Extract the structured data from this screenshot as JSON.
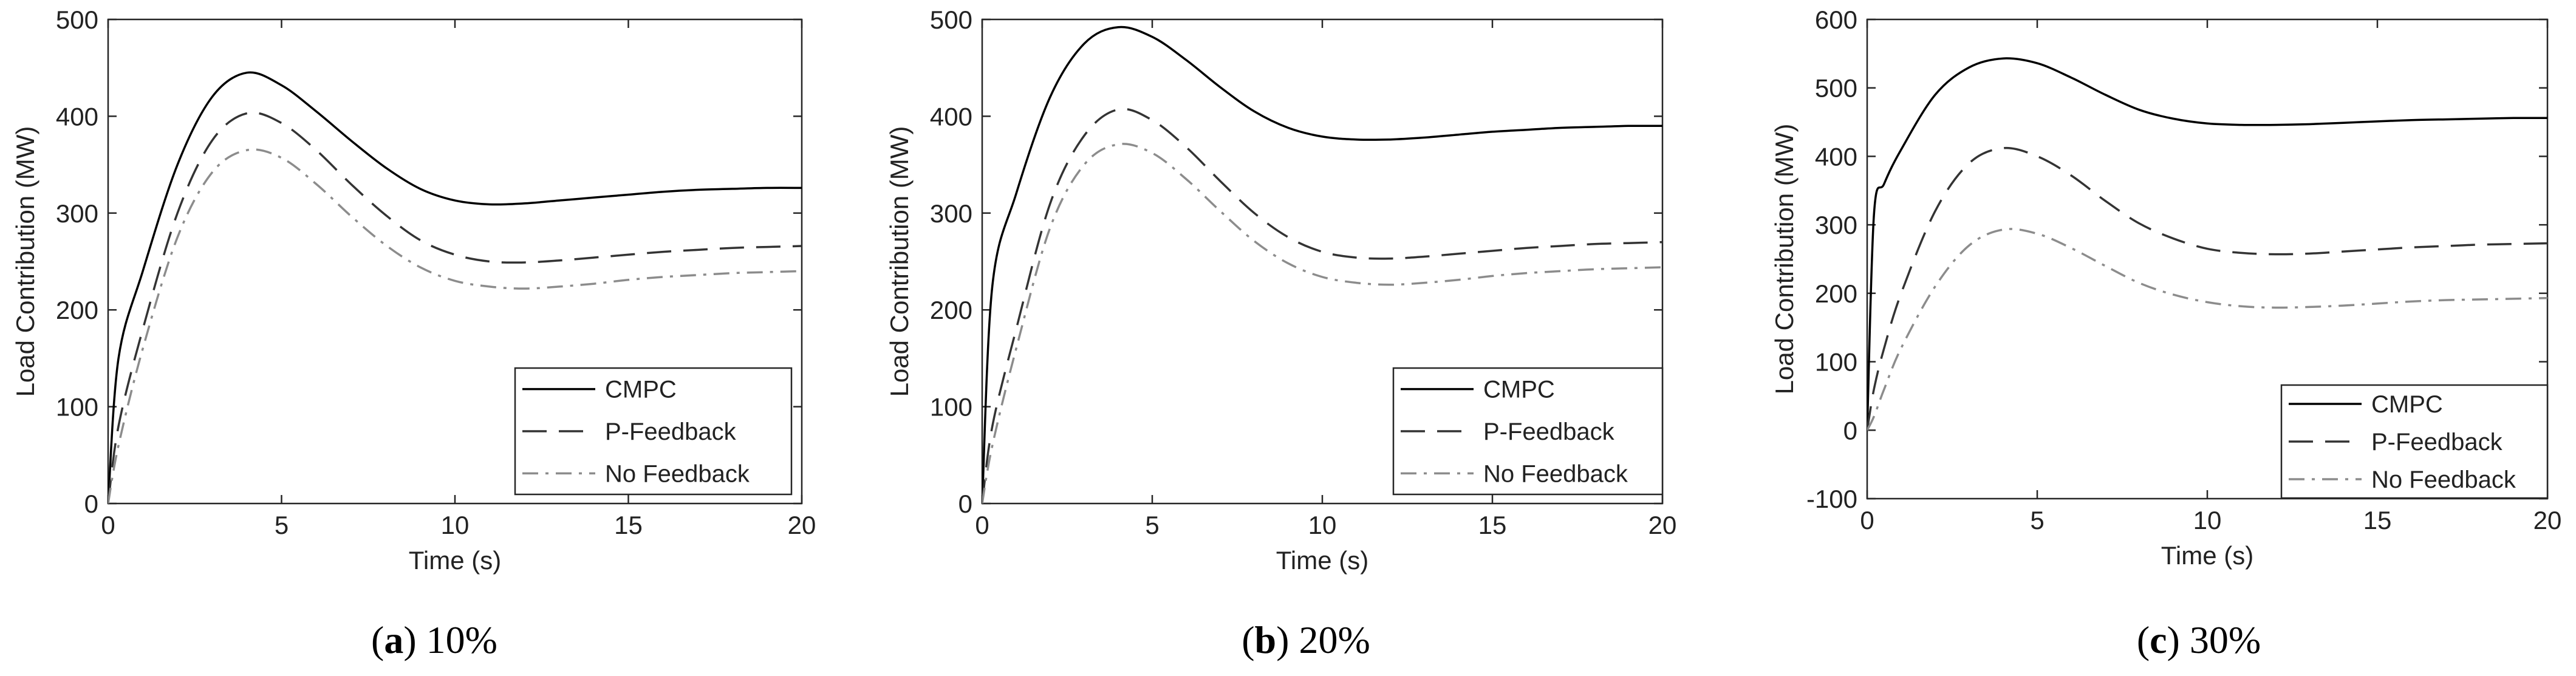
{
  "figure": {
    "background": "#ffffff"
  },
  "chart_data": [
    {
      "type": "line",
      "panel": "a",
      "caption_letter": "a",
      "caption_value": "10%",
      "title": "",
      "xlabel": "Time (s)",
      "ylabel": "Load Contribution (MW)",
      "xlim": [
        0,
        20
      ],
      "ylim": [
        0,
        500
      ],
      "xticks": [
        0,
        5,
        10,
        15,
        20
      ],
      "yticks": [
        0,
        100,
        200,
        300,
        400,
        500
      ],
      "grid": false,
      "legend": "bottom-right",
      "x": [
        0,
        0.3,
        1,
        2,
        3,
        4,
        5,
        6,
        7,
        8,
        9,
        10,
        11,
        12,
        13,
        14,
        15,
        16,
        17,
        18,
        19,
        20
      ],
      "series": [
        {
          "name": "CMPC",
          "style": "solid",
          "color": "#000000",
          "values": [
            0,
            150,
            240,
            350,
            420,
            445,
            432,
            405,
            375,
            347,
            325,
            313,
            309,
            310,
            313,
            316,
            319,
            322,
            324,
            325,
            326,
            326
          ]
        },
        {
          "name": "P-Feedback",
          "style": "dashed",
          "color": "#333333",
          "values": [
            0,
            80,
            180,
            300,
            375,
            403,
            393,
            365,
            330,
            298,
            272,
            257,
            250,
            249,
            251,
            254,
            257,
            260,
            262,
            264,
            265,
            266
          ]
        },
        {
          "name": "No Feedback",
          "style": "dashdot",
          "color": "#8c8c8c",
          "values": [
            0,
            60,
            160,
            275,
            342,
            365,
            357,
            330,
            297,
            267,
            244,
            230,
            224,
            222,
            224,
            227,
            231,
            234,
            236,
            238,
            239,
            240
          ]
        }
      ]
    },
    {
      "type": "line",
      "panel": "b",
      "caption_letter": "b",
      "caption_value": "20%",
      "title": "",
      "xlabel": "Time (s)",
      "ylabel": "Load Contribution (MW)",
      "xlim": [
        0,
        20
      ],
      "ylim": [
        0,
        500
      ],
      "xticks": [
        0,
        5,
        10,
        15,
        20
      ],
      "yticks": [
        0,
        100,
        200,
        300,
        400,
        500
      ],
      "grid": false,
      "legend": "bottom-right",
      "x": [
        0,
        0.3,
        1,
        2,
        3,
        4,
        5,
        6,
        7,
        8,
        9,
        10,
        11,
        12,
        13,
        14,
        15,
        16,
        17,
        18,
        19,
        20
      ],
      "series": [
        {
          "name": "CMPC",
          "style": "solid",
          "color": "#000000",
          "values": [
            0,
            225,
            320,
            420,
            475,
            492,
            482,
            458,
            430,
            405,
            388,
            379,
            376,
            376,
            378,
            381,
            384,
            386,
            388,
            389,
            390,
            390
          ]
        },
        {
          "name": "P-Feedback",
          "style": "dashed",
          "color": "#333333",
          "values": [
            0,
            80,
            180,
            310,
            380,
            407,
            396,
            368,
            333,
            300,
            275,
            260,
            254,
            253,
            255,
            258,
            261,
            264,
            266,
            268,
            269,
            270
          ]
        },
        {
          "name": "No Feedback",
          "style": "dashdot",
          "color": "#8c8c8c",
          "values": [
            0,
            60,
            160,
            285,
            350,
            371,
            362,
            335,
            302,
            271,
            248,
            234,
            228,
            226,
            228,
            231,
            235,
            238,
            240,
            242,
            243,
            244
          ]
        }
      ]
    },
    {
      "type": "line",
      "panel": "c",
      "caption_letter": "c",
      "caption_value": "30%",
      "title": "",
      "xlabel": "Time (s)",
      "ylabel": "Load Contribution (MW)",
      "xlim": [
        0,
        20
      ],
      "ylim": [
        -100,
        600
      ],
      "xticks": [
        0,
        5,
        10,
        15,
        20
      ],
      "yticks": [
        -100,
        0,
        100,
        200,
        300,
        400,
        500,
        600
      ],
      "grid": false,
      "legend": "bottom-right",
      "x": [
        0,
        0.2,
        0.5,
        1,
        2,
        3,
        4,
        5,
        6,
        7,
        8,
        9,
        10,
        11,
        12,
        13,
        14,
        15,
        16,
        17,
        18,
        19,
        20
      ],
      "series": [
        {
          "name": "CMPC",
          "style": "solid",
          "color": "#000000",
          "values": [
            0,
            315,
            360,
            410,
            490,
            530,
            543,
            536,
            515,
            490,
            468,
            455,
            448,
            446,
            446,
            447,
            449,
            451,
            453,
            454,
            455,
            456,
            456
          ]
        },
        {
          "name": "P-Feedback",
          "style": "dashed",
          "color": "#333333",
          "values": [
            0,
            60,
            120,
            200,
            320,
            390,
            412,
            400,
            372,
            335,
            302,
            280,
            265,
            259,
            257,
            258,
            261,
            264,
            267,
            269,
            271,
            272,
            273
          ]
        },
        {
          "name": "No Feedback",
          "style": "dashdot",
          "color": "#8c8c8c",
          "values": [
            0,
            20,
            60,
            120,
            210,
            270,
            293,
            287,
            266,
            240,
            215,
            198,
            187,
            181,
            179,
            180,
            182,
            185,
            188,
            190,
            191,
            192,
            193
          ]
        }
      ]
    }
  ]
}
